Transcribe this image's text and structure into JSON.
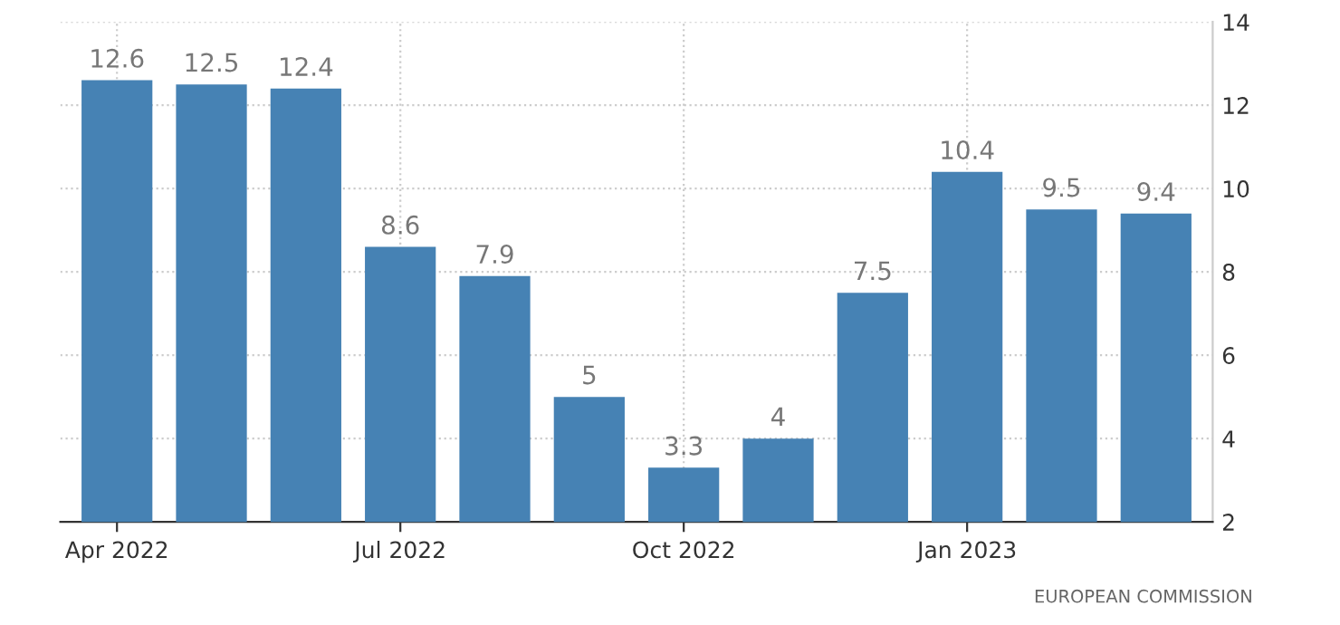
{
  "chart_data": {
    "type": "bar",
    "categories": [
      "Apr 2022",
      null,
      null,
      "Jul 2022",
      null,
      null,
      "Oct 2022",
      null,
      null,
      "Jan 2023",
      null,
      null
    ],
    "values": [
      12.6,
      12.5,
      12.4,
      8.6,
      7.9,
      5,
      3.3,
      4,
      7.5,
      10.4,
      9.5,
      9.4
    ],
    "color": "#4682b4",
    "data_labels": true,
    "ylim": [
      2,
      14
    ],
    "yticks": [
      2,
      4,
      6,
      8,
      10,
      12,
      14
    ],
    "grid": true,
    "annotations": [
      "EUROPEAN COMMISSION"
    ]
  }
}
